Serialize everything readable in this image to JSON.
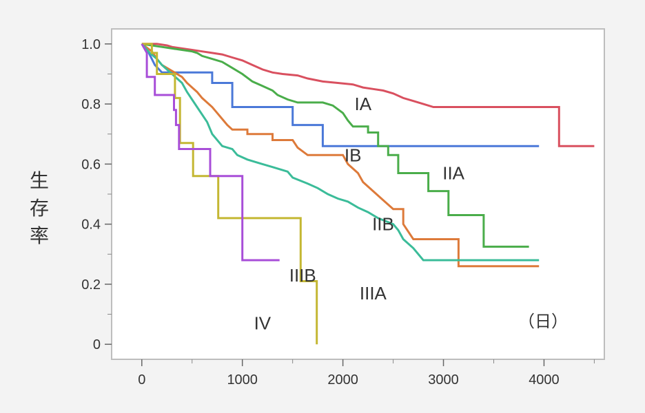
{
  "chart_data": {
    "type": "line",
    "title": "",
    "xlabel": "",
    "ylabel": "生存率",
    "x_unit_label": "（日）",
    "xlim": [
      -300,
      4600
    ],
    "ylim": [
      -0.05,
      1.05
    ],
    "x_ticks": [
      0,
      1000,
      2000,
      3000,
      4000
    ],
    "x_tick_labels": [
      "0",
      "1000",
      "2000",
      "3000",
      "4000"
    ],
    "y_ticks": [
      0,
      0.2,
      0.4,
      0.6,
      0.8,
      1.0
    ],
    "y_tick_labels": [
      "0",
      "0.2",
      "0.4",
      "0.6",
      "0.8",
      "1.0"
    ],
    "grid": false,
    "series": [
      {
        "name": "IA",
        "color": "#d9505f",
        "label_pos": [
          2200,
          0.8
        ],
        "points": [
          [
            0,
            1.0
          ],
          [
            150,
            1.0
          ],
          [
            250,
            0.995
          ],
          [
            300,
            0.99
          ],
          [
            400,
            0.985
          ],
          [
            500,
            0.98
          ],
          [
            600,
            0.975
          ],
          [
            700,
            0.97
          ],
          [
            800,
            0.965
          ],
          [
            900,
            0.955
          ],
          [
            1000,
            0.945
          ],
          [
            1100,
            0.93
          ],
          [
            1200,
            0.915
          ],
          [
            1300,
            0.905
          ],
          [
            1400,
            0.9
          ],
          [
            1550,
            0.895
          ],
          [
            1650,
            0.885
          ],
          [
            1800,
            0.875
          ],
          [
            1950,
            0.87
          ],
          [
            2100,
            0.865
          ],
          [
            2200,
            0.855
          ],
          [
            2300,
            0.85
          ],
          [
            2400,
            0.845
          ],
          [
            2500,
            0.835
          ],
          [
            2600,
            0.82
          ],
          [
            2700,
            0.81
          ],
          [
            2800,
            0.8
          ],
          [
            2900,
            0.79
          ],
          [
            3100,
            0.79
          ],
          [
            3500,
            0.79
          ],
          [
            4150,
            0.79
          ],
          [
            4150,
            0.66
          ],
          [
            4500,
            0.66
          ]
        ]
      },
      {
        "name": "IB",
        "color": "#4a78d8",
        "label_pos": [
          2100,
          0.63
        ],
        "points": [
          [
            0,
            1.0
          ],
          [
            70,
            0.97
          ],
          [
            130,
            0.93
          ],
          [
            200,
            0.905
          ],
          [
            700,
            0.905
          ],
          [
            700,
            0.87
          ],
          [
            900,
            0.87
          ],
          [
            900,
            0.79
          ],
          [
            1500,
            0.79
          ],
          [
            1500,
            0.73
          ],
          [
            1800,
            0.73
          ],
          [
            1800,
            0.66
          ],
          [
            2400,
            0.66
          ],
          [
            3950,
            0.66
          ]
        ]
      },
      {
        "name": "IIA",
        "color": "#4aad4a",
        "label_pos": [
          3100,
          0.57
        ],
        "points": [
          [
            0,
            1.0
          ],
          [
            100,
            0.995
          ],
          [
            200,
            0.99
          ],
          [
            300,
            0.985
          ],
          [
            400,
            0.98
          ],
          [
            500,
            0.975
          ],
          [
            550,
            0.97
          ],
          [
            600,
            0.96
          ],
          [
            700,
            0.95
          ],
          [
            800,
            0.94
          ],
          [
            900,
            0.92
          ],
          [
            1000,
            0.9
          ],
          [
            1100,
            0.875
          ],
          [
            1200,
            0.86
          ],
          [
            1300,
            0.845
          ],
          [
            1350,
            0.83
          ],
          [
            1450,
            0.815
          ],
          [
            1550,
            0.805
          ],
          [
            1800,
            0.805
          ],
          [
            1900,
            0.795
          ],
          [
            2000,
            0.77
          ],
          [
            2050,
            0.745
          ],
          [
            2100,
            0.725
          ],
          [
            2250,
            0.725
          ],
          [
            2250,
            0.705
          ],
          [
            2350,
            0.705
          ],
          [
            2350,
            0.66
          ],
          [
            2450,
            0.66
          ],
          [
            2450,
            0.63
          ],
          [
            2550,
            0.63
          ],
          [
            2550,
            0.57
          ],
          [
            2850,
            0.57
          ],
          [
            2850,
            0.51
          ],
          [
            3050,
            0.51
          ],
          [
            3050,
            0.43
          ],
          [
            3400,
            0.43
          ],
          [
            3400,
            0.325
          ],
          [
            3850,
            0.325
          ]
        ]
      },
      {
        "name": "IIB",
        "color": "#dd7a3a",
        "label_pos": [
          2400,
          0.4
        ],
        "points": [
          [
            0,
            1.0
          ],
          [
            100,
            0.975
          ],
          [
            150,
            0.95
          ],
          [
            200,
            0.93
          ],
          [
            300,
            0.91
          ],
          [
            400,
            0.89
          ],
          [
            450,
            0.87
          ],
          [
            550,
            0.84
          ],
          [
            600,
            0.82
          ],
          [
            700,
            0.79
          ],
          [
            750,
            0.77
          ],
          [
            800,
            0.75
          ],
          [
            850,
            0.73
          ],
          [
            900,
            0.715
          ],
          [
            1050,
            0.715
          ],
          [
            1050,
            0.7
          ],
          [
            1300,
            0.7
          ],
          [
            1300,
            0.68
          ],
          [
            1500,
            0.68
          ],
          [
            1550,
            0.655
          ],
          [
            1650,
            0.63
          ],
          [
            2000,
            0.63
          ],
          [
            2050,
            0.6
          ],
          [
            2150,
            0.57
          ],
          [
            2200,
            0.54
          ],
          [
            2300,
            0.51
          ],
          [
            2400,
            0.48
          ],
          [
            2500,
            0.45
          ],
          [
            2600,
            0.45
          ],
          [
            2600,
            0.4
          ],
          [
            2700,
            0.35
          ],
          [
            3150,
            0.35
          ],
          [
            3150,
            0.26
          ],
          [
            3950,
            0.26
          ]
        ]
      },
      {
        "name": "IIIA",
        "color": "#3bbc99",
        "label_pos": [
          2300,
          0.17
        ],
        "points": [
          [
            0,
            1.0
          ],
          [
            80,
            0.97
          ],
          [
            150,
            0.95
          ],
          [
            200,
            0.93
          ],
          [
            300,
            0.9
          ],
          [
            400,
            0.87
          ],
          [
            450,
            0.84
          ],
          [
            550,
            0.79
          ],
          [
            650,
            0.74
          ],
          [
            700,
            0.7
          ],
          [
            800,
            0.66
          ],
          [
            900,
            0.65
          ],
          [
            950,
            0.63
          ],
          [
            1050,
            0.615
          ],
          [
            1200,
            0.6
          ],
          [
            1300,
            0.59
          ],
          [
            1450,
            0.575
          ],
          [
            1500,
            0.555
          ],
          [
            1650,
            0.535
          ],
          [
            1750,
            0.52
          ],
          [
            1850,
            0.5
          ],
          [
            1950,
            0.485
          ],
          [
            2050,
            0.475
          ],
          [
            2150,
            0.455
          ],
          [
            2250,
            0.44
          ],
          [
            2350,
            0.42
          ],
          [
            2500,
            0.4
          ],
          [
            2550,
            0.38
          ],
          [
            2600,
            0.35
          ],
          [
            2700,
            0.32
          ],
          [
            2800,
            0.28
          ],
          [
            3950,
            0.28
          ]
        ]
      },
      {
        "name": "IIIB",
        "color": "#c4b733",
        "label_pos": [
          1600,
          0.23
        ],
        "points": [
          [
            0,
            1.0
          ],
          [
            100,
            1.0
          ],
          [
            100,
            0.97
          ],
          [
            150,
            0.97
          ],
          [
            150,
            0.9
          ],
          [
            330,
            0.9
          ],
          [
            330,
            0.82
          ],
          [
            380,
            0.82
          ],
          [
            380,
            0.67
          ],
          [
            510,
            0.67
          ],
          [
            510,
            0.56
          ],
          [
            760,
            0.56
          ],
          [
            760,
            0.42
          ],
          [
            1580,
            0.42
          ],
          [
            1580,
            0.21
          ],
          [
            1740,
            0.21
          ],
          [
            1740,
            0.0
          ]
        ]
      },
      {
        "name": "IV",
        "color": "#a84ed8",
        "label_pos": [
          1200,
          0.07
        ],
        "points": [
          [
            0,
            1.0
          ],
          [
            50,
            0.97
          ],
          [
            50,
            0.89
          ],
          [
            130,
            0.89
          ],
          [
            130,
            0.83
          ],
          [
            320,
            0.83
          ],
          [
            320,
            0.78
          ],
          [
            340,
            0.78
          ],
          [
            340,
            0.73
          ],
          [
            370,
            0.73
          ],
          [
            370,
            0.65
          ],
          [
            680,
            0.65
          ],
          [
            680,
            0.56
          ],
          [
            1000,
            0.56
          ],
          [
            1000,
            0.28
          ],
          [
            1370,
            0.28
          ]
        ]
      }
    ]
  }
}
